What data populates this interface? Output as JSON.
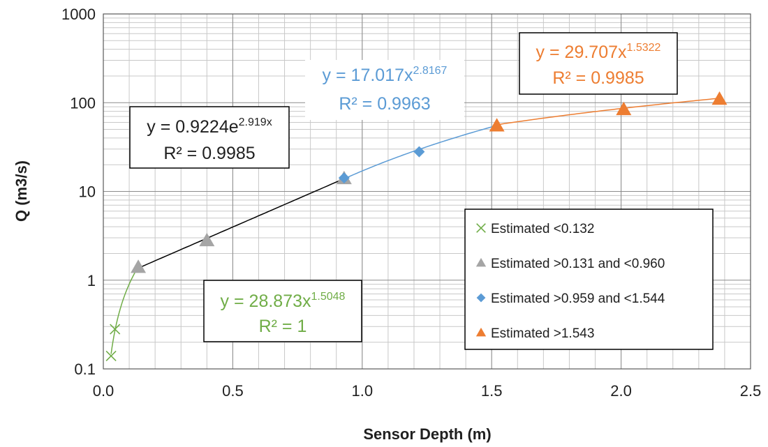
{
  "chart_data": {
    "type": "scatter",
    "xlabel": "Sensor Depth (m)",
    "ylabel": "Q (m3/s)",
    "xlim": [
      0,
      2.5
    ],
    "ylim": [
      0.1,
      1000
    ],
    "y_scale": "log",
    "grid": true,
    "legend_position": "bottom-right",
    "x_ticks": [
      "0.0",
      "0.5",
      "1.0",
      "1.5",
      "2.0",
      "2.5"
    ],
    "y_ticks": [
      "0.1",
      "1",
      "10",
      "100",
      "1000"
    ],
    "series": [
      {
        "name": "Estimated <0.132",
        "marker": "x",
        "color": "#70ad47",
        "x": [
          0.03,
          0.045
        ],
        "y": [
          0.14,
          0.28
        ]
      },
      {
        "name": "Estimated >0.131 and <0.960",
        "marker": "triangle",
        "color": "#a5a5a5",
        "x": [
          0.135,
          0.4,
          0.93
        ],
        "y": [
          1.4,
          2.8,
          14
        ]
      },
      {
        "name": "Estimated >0.959 and <1.544",
        "marker": "diamond",
        "color": "#5b9bd5",
        "x": [
          0.93,
          1.22
        ],
        "y": [
          14.2,
          28
        ]
      },
      {
        "name": "Estimated >1.543",
        "marker": "triangle",
        "color": "#ed7d31",
        "x": [
          1.52,
          2.01,
          2.38
        ],
        "y": [
          55,
          84,
          110
        ]
      }
    ],
    "trendlines": [
      {
        "kind": "power",
        "a": 28.873,
        "b": 1.5048,
        "x_range": [
          0.03,
          0.135
        ],
        "color": "#70ad47"
      },
      {
        "kind": "exponential",
        "a": 0.9224,
        "b": 2.919,
        "x_range": [
          0.135,
          0.93
        ],
        "color": "#000000"
      },
      {
        "kind": "power",
        "a": 17.017,
        "b": 2.8167,
        "x_range": [
          0.93,
          1.52
        ],
        "color": "#5b9bd5"
      },
      {
        "kind": "power",
        "a": 29.707,
        "b": 1.5322,
        "x_range": [
          1.52,
          2.38
        ],
        "color": "#ed7d31"
      }
    ],
    "annotations": [
      {
        "id": "green",
        "color": "#70ad47",
        "eq_base": "y = 28.873x",
        "eq_exp": "1.5048",
        "r2": "R² = 1"
      },
      {
        "id": "black",
        "color": "#1f1f1f",
        "eq_base": "y = 0.9224e",
        "eq_exp": "2.919x",
        "r2": "R² = 0.9985"
      },
      {
        "id": "blue",
        "color": "#5b9bd5",
        "eq_base": "y = 17.017x",
        "eq_exp": "2.8167",
        "r2": "R² = 0.9963"
      },
      {
        "id": "orange",
        "color": "#ed7d31",
        "eq_base": "y = 29.707x",
        "eq_exp": "1.5322",
        "r2": "R² = 0.9985"
      }
    ]
  }
}
